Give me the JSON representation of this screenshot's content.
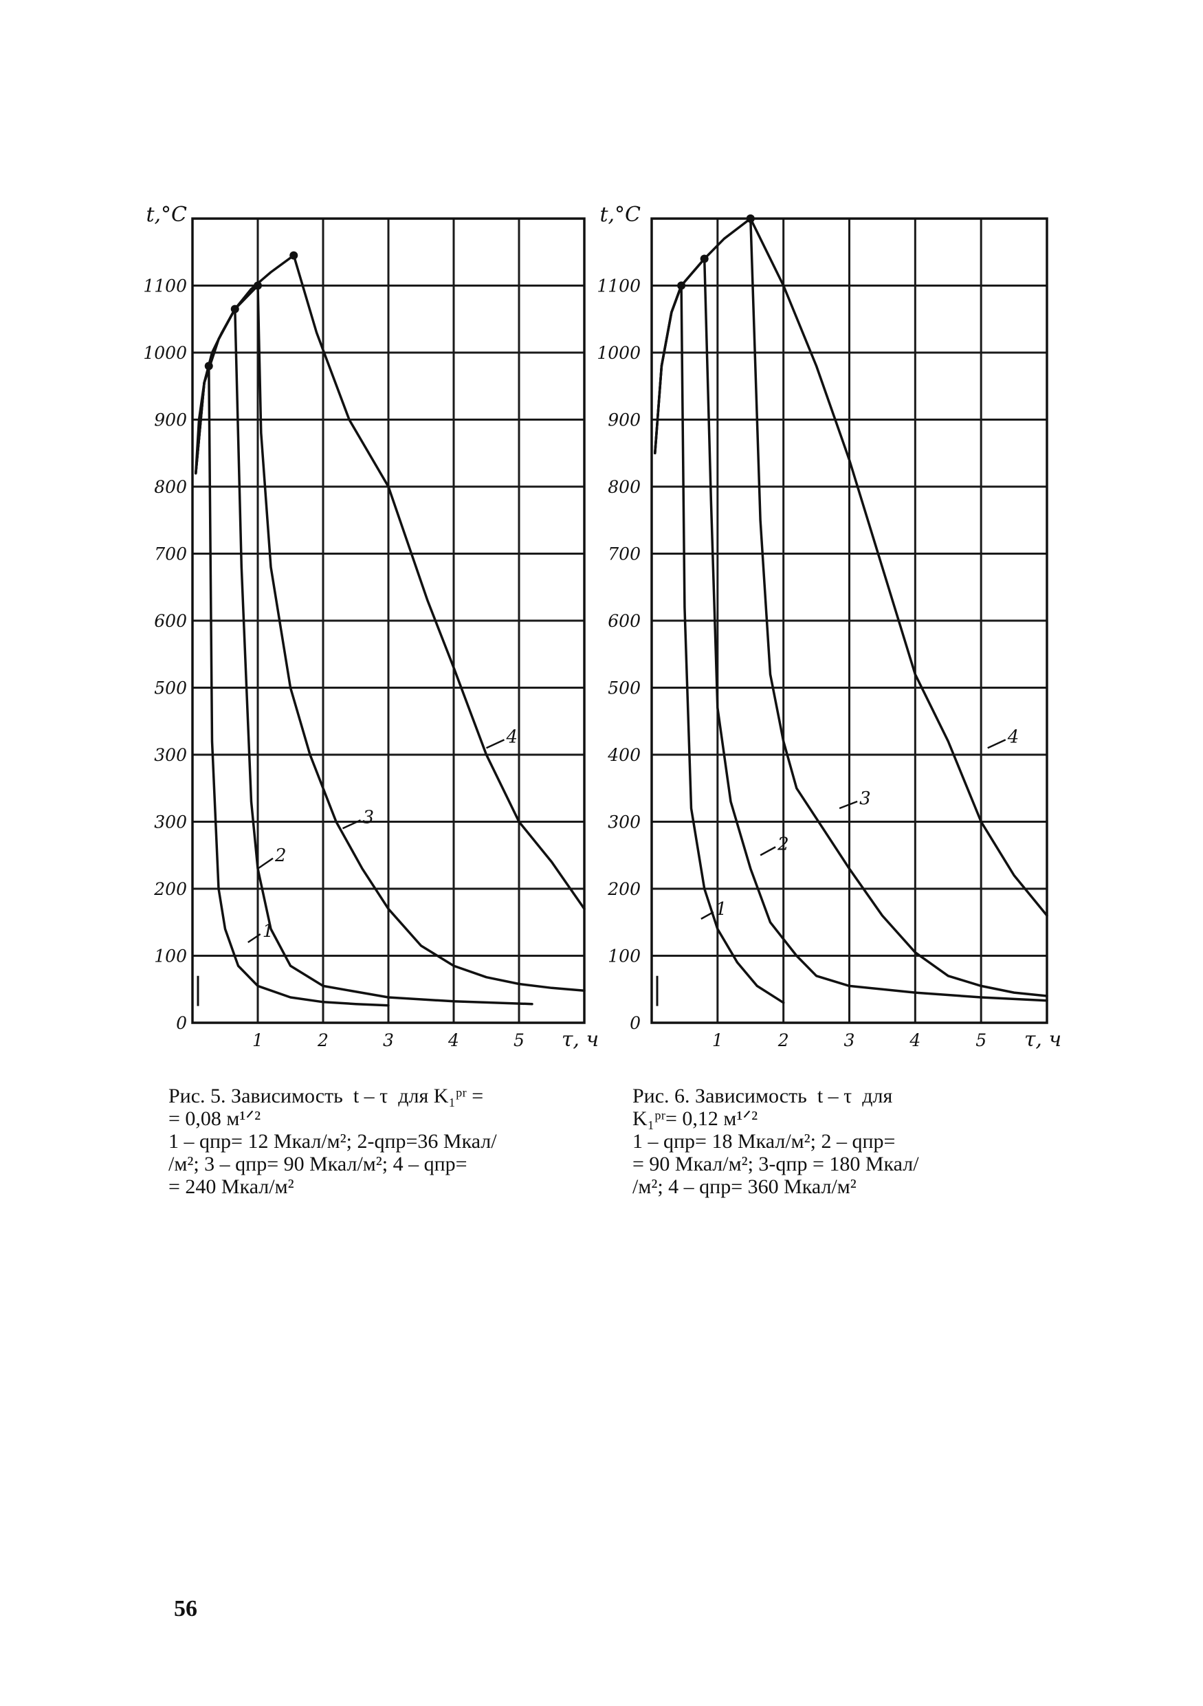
{
  "chart_data": [
    {
      "type": "line",
      "title": "",
      "xlabel": "τ, ч",
      "ylabel": "t,°C",
      "xlim": [
        0,
        6
      ],
      "ylim": [
        0,
        1200
      ],
      "x_ticks": [
        "1",
        "2",
        "3",
        "4",
        "5"
      ],
      "y_ticks": [
        "0",
        "100",
        "200",
        "300",
        "400",
        "500",
        "600",
        "700",
        "800",
        "900",
        "1000",
        "1100"
      ],
      "y_tick_labels": [
        "0",
        "100",
        "200",
        "300",
        "300",
        "500",
        "600",
        "700",
        "800",
        "900",
        "1000",
        "1100"
      ],
      "grid": true,
      "series": [
        {
          "name": "1",
          "peak": [
            0.25,
            980
          ],
          "values": [
            [
              0.05,
              820
            ],
            [
              0.1,
              900
            ],
            [
              0.18,
              955
            ],
            [
              0.25,
              980
            ],
            [
              0.3,
              420
            ],
            [
              0.4,
              200
            ],
            [
              0.5,
              140
            ],
            [
              0.7,
              85
            ],
            [
              1.0,
              55
            ],
            [
              1.5,
              38
            ],
            [
              2.0,
              31
            ],
            [
              2.5,
              28
            ],
            [
              3.0,
              26
            ]
          ]
        },
        {
          "name": "2",
          "peak": [
            0.65,
            1065
          ],
          "values": [
            [
              0.05,
              820
            ],
            [
              0.18,
              955
            ],
            [
              0.3,
              1000
            ],
            [
              0.45,
              1030
            ],
            [
              0.65,
              1065
            ],
            [
              0.75,
              680
            ],
            [
              0.9,
              330
            ],
            [
              1.0,
              230
            ],
            [
              1.2,
              140
            ],
            [
              1.5,
              85
            ],
            [
              2.0,
              55
            ],
            [
              3.0,
              38
            ],
            [
              4.0,
              32
            ],
            [
              5.2,
              28
            ]
          ]
        },
        {
          "name": "3",
          "peak": [
            1.0,
            1100
          ],
          "values": [
            [
              0.05,
              820
            ],
            [
              0.18,
              955
            ],
            [
              0.4,
              1020
            ],
            [
              0.65,
              1065
            ],
            [
              1.0,
              1100
            ],
            [
              1.05,
              880
            ],
            [
              1.2,
              680
            ],
            [
              1.5,
              500
            ],
            [
              1.8,
              400
            ],
            [
              2.2,
              300
            ],
            [
              2.6,
              230
            ],
            [
              3.0,
              170
            ],
            [
              3.5,
              115
            ],
            [
              4.0,
              85
            ],
            [
              4.5,
              68
            ],
            [
              5.0,
              58
            ],
            [
              5.5,
              52
            ],
            [
              6.0,
              48
            ]
          ]
        },
        {
          "name": "4",
          "peak": [
            1.55,
            1145
          ],
          "values": [
            [
              0.05,
              820
            ],
            [
              0.18,
              955
            ],
            [
              0.4,
              1020
            ],
            [
              0.65,
              1065
            ],
            [
              0.9,
              1095
            ],
            [
              1.2,
              1120
            ],
            [
              1.55,
              1145
            ],
            [
              1.9,
              1030
            ],
            [
              2.4,
              900
            ],
            [
              3.0,
              800
            ],
            [
              3.6,
              630
            ],
            [
              4.0,
              530
            ],
            [
              4.5,
              400
            ],
            [
              5.0,
              300
            ],
            [
              5.5,
              240
            ],
            [
              6.0,
              170
            ]
          ]
        }
      ],
      "curve_labels": [
        "1",
        "2",
        "3",
        "4"
      ],
      "caption": {
        "lines": [
          "Рис. 5. Зависимость  t – τ  для K₁ᵖʳ =",
          "= 0,08 м¹ᐟ²",
          "1 – qпр= 12 Мкал/м²; 2-qпр=36 Мкал/",
          "/м²; 3 – qпр= 90 Мкал/м²; 4 – qпр=",
          "= 240 Мкал/м²"
        ]
      }
    },
    {
      "type": "line",
      "title": "",
      "xlabel": "τ, ч",
      "ylabel": "t,°C",
      "xlim": [
        0,
        6
      ],
      "ylim": [
        0,
        1200
      ],
      "x_ticks": [
        "1",
        "2",
        "3",
        "4",
        "5"
      ],
      "y_ticks": [
        "0",
        "100",
        "200",
        "300",
        "400",
        "500",
        "600",
        "700",
        "800",
        "900",
        "1000",
        "1100"
      ],
      "y_tick_labels": [
        "0",
        "100",
        "200",
        "300",
        "400",
        "500",
        "600",
        "700",
        "800",
        "900",
        "1000",
        "1100"
      ],
      "grid": true,
      "series": [
        {
          "name": "1",
          "peak": [
            0.45,
            1100
          ],
          "values": [
            [
              0.05,
              850
            ],
            [
              0.15,
              980
            ],
            [
              0.3,
              1060
            ],
            [
              0.45,
              1100
            ],
            [
              0.5,
              620
            ],
            [
              0.6,
              320
            ],
            [
              0.8,
              200
            ],
            [
              1.0,
              140
            ],
            [
              1.3,
              90
            ],
            [
              1.6,
              55
            ],
            [
              2.0,
              30
            ]
          ]
        },
        {
          "name": "2",
          "peak": [
            0.8,
            1140
          ],
          "values": [
            [
              0.05,
              850
            ],
            [
              0.15,
              980
            ],
            [
              0.3,
              1060
            ],
            [
              0.45,
              1100
            ],
            [
              0.8,
              1140
            ],
            [
              0.9,
              780
            ],
            [
              1.0,
              470
            ],
            [
              1.2,
              330
            ],
            [
              1.5,
              230
            ],
            [
              1.8,
              150
            ],
            [
              2.2,
              100
            ],
            [
              2.5,
              70
            ],
            [
              3.0,
              55
            ],
            [
              4.0,
              45
            ],
            [
              5.0,
              38
            ],
            [
              6.0,
              33
            ]
          ]
        },
        {
          "name": "3",
          "peak": [
            1.5,
            1200
          ],
          "values": [
            [
              0.05,
              850
            ],
            [
              0.15,
              980
            ],
            [
              0.3,
              1060
            ],
            [
              0.45,
              1100
            ],
            [
              0.8,
              1140
            ],
            [
              1.1,
              1170
            ],
            [
              1.5,
              1200
            ],
            [
              1.65,
              750
            ],
            [
              1.8,
              520
            ],
            [
              2.0,
              420
            ],
            [
              2.2,
              350
            ],
            [
              2.6,
              290
            ],
            [
              3.0,
              230
            ],
            [
              3.5,
              160
            ],
            [
              4.0,
              105
            ],
            [
              4.5,
              70
            ],
            [
              5.0,
              55
            ],
            [
              5.5,
              45
            ],
            [
              6.0,
              40
            ]
          ]
        },
        {
          "name": "4",
          "peak": [
            1.5,
            1200
          ],
          "values": [
            [
              1.5,
              1200
            ],
            [
              2.0,
              1100
            ],
            [
              2.5,
              980
            ],
            [
              3.0,
              840
            ],
            [
              3.5,
              680
            ],
            [
              4.0,
              520
            ],
            [
              4.5,
              420
            ],
            [
              5.0,
              300
            ],
            [
              5.5,
              220
            ],
            [
              6.0,
              160
            ]
          ]
        }
      ],
      "curve_labels": [
        "1",
        "2",
        "3",
        "4"
      ],
      "caption": {
        "lines": [
          "Рис. 6. Зависимость  t – τ  для",
          "K₁ᵖʳ= 0,12 м¹ᐟ²",
          "1 – qпр= 18 Мкал/м²; 2 – qпр=",
          "= 90 Мкал/м²; 3-qпр = 180 Мкал/",
          "/м²; 4 – qпр= 360 Мкал/м²"
        ]
      }
    }
  ],
  "page_number": "56"
}
